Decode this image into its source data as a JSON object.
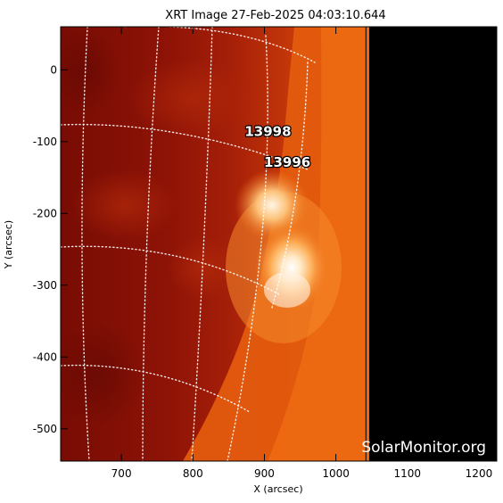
{
  "title": "XRT Image 27-Feb-2025 04:03:10.644",
  "x_axis": {
    "label": "X (arcsec)",
    "range": [
      615,
      1225
    ],
    "ticks": [
      700,
      800,
      900,
      1000,
      1100,
      1200
    ]
  },
  "y_axis": {
    "label": "Y (arcsec)",
    "range": [
      -545,
      60
    ],
    "ticks": [
      0,
      -100,
      -200,
      -300,
      -400,
      -500
    ]
  },
  "active_regions": [
    {
      "label": "13998",
      "x": 905,
      "y": -92
    },
    {
      "label": "13996",
      "x": 932,
      "y": -135
    }
  ],
  "data_edge_x": 1042,
  "watermark": "SolarMonitor.org",
  "colors": {
    "disk_dark": "#7a0d04",
    "disk_mid": "#a51e08",
    "limb_bright": "#e85a0c",
    "flare_core": "#fff3e0",
    "no_data": "#000000",
    "grid": "#ffffff"
  }
}
